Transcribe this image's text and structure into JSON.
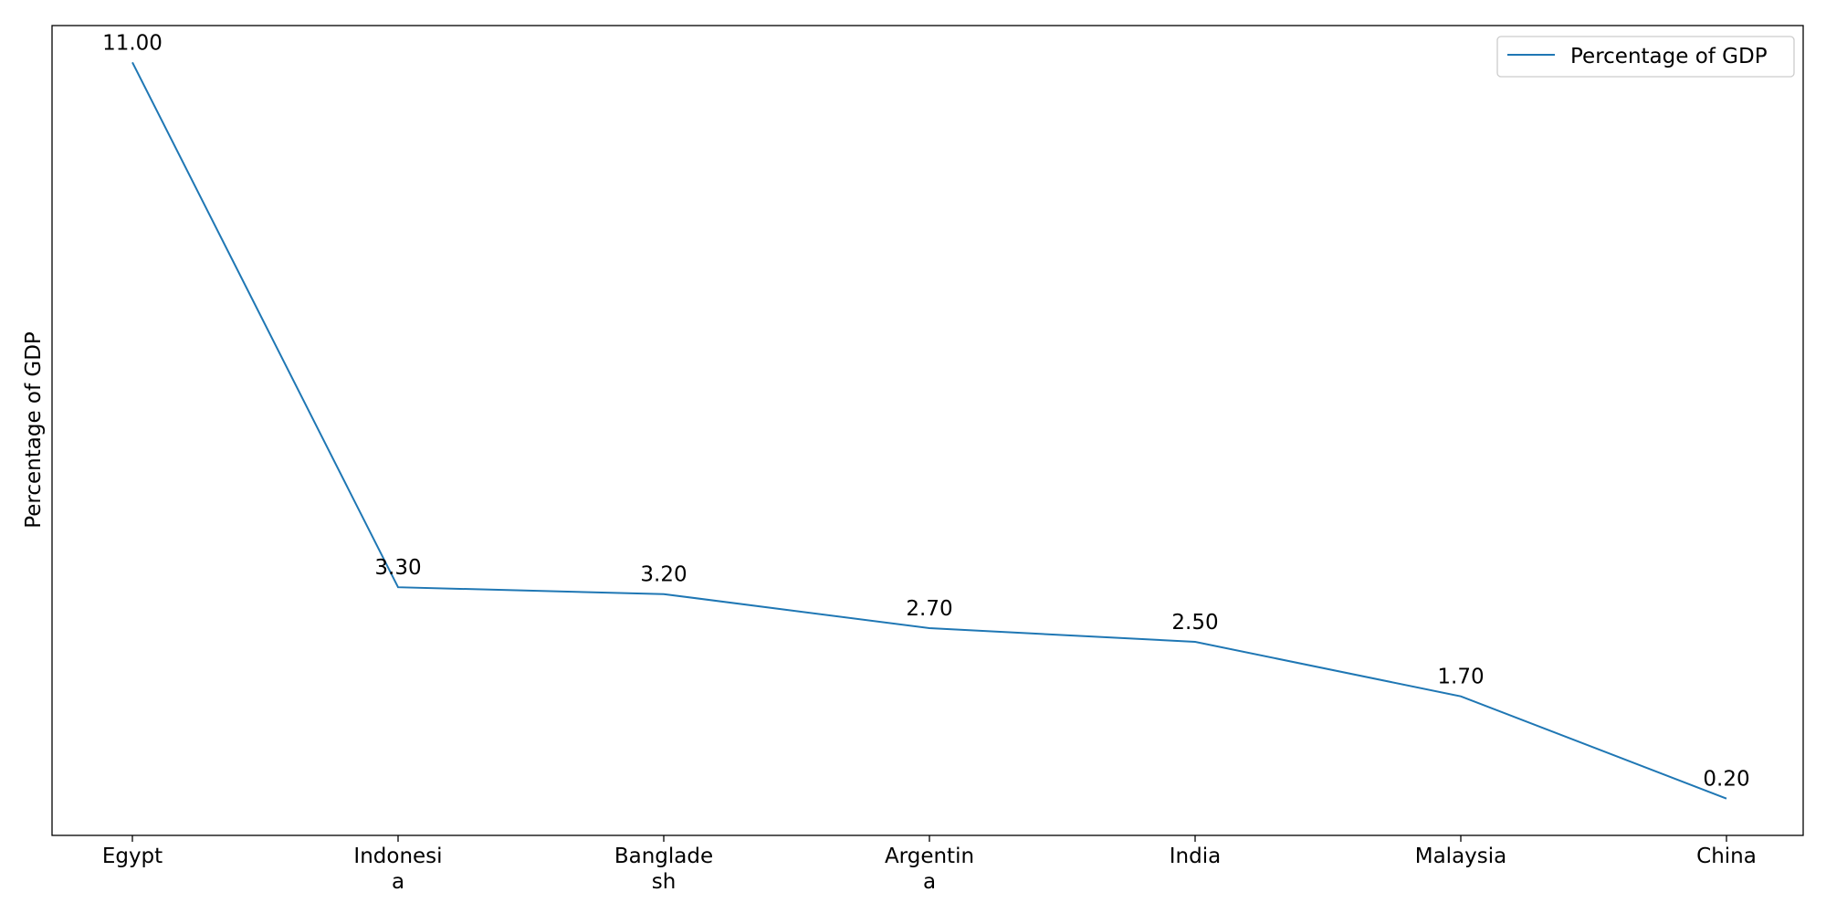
{
  "chart_data": {
    "type": "line",
    "title": "",
    "xlabel": "",
    "ylabel": "Percentage of GDP",
    "categories": [
      "Egypt",
      "Indonesia",
      "Bangladesh",
      "Argentina",
      "India",
      "Malaysia",
      "China"
    ],
    "category_lines": [
      [
        "Egypt"
      ],
      [
        "Indonesi",
        "a"
      ],
      [
        "Banglade",
        "sh"
      ],
      [
        "Argentin",
        "a"
      ],
      [
        "India"
      ],
      [
        "Malaysia"
      ],
      [
        "China"
      ]
    ],
    "series": [
      {
        "name": "Percentage of GDP",
        "values": [
          11.0,
          3.3,
          3.2,
          2.7,
          2.5,
          1.7,
          0.2
        ],
        "labels": [
          "11.00",
          "3.30",
          "3.20",
          "2.70",
          "2.50",
          "1.70",
          "0.20"
        ],
        "color": "#1f77b4"
      }
    ],
    "ylim": [
      -0.34,
      11.54
    ],
    "grid": false,
    "yticks_visible": false,
    "legend": {
      "position": "top-right"
    }
  }
}
